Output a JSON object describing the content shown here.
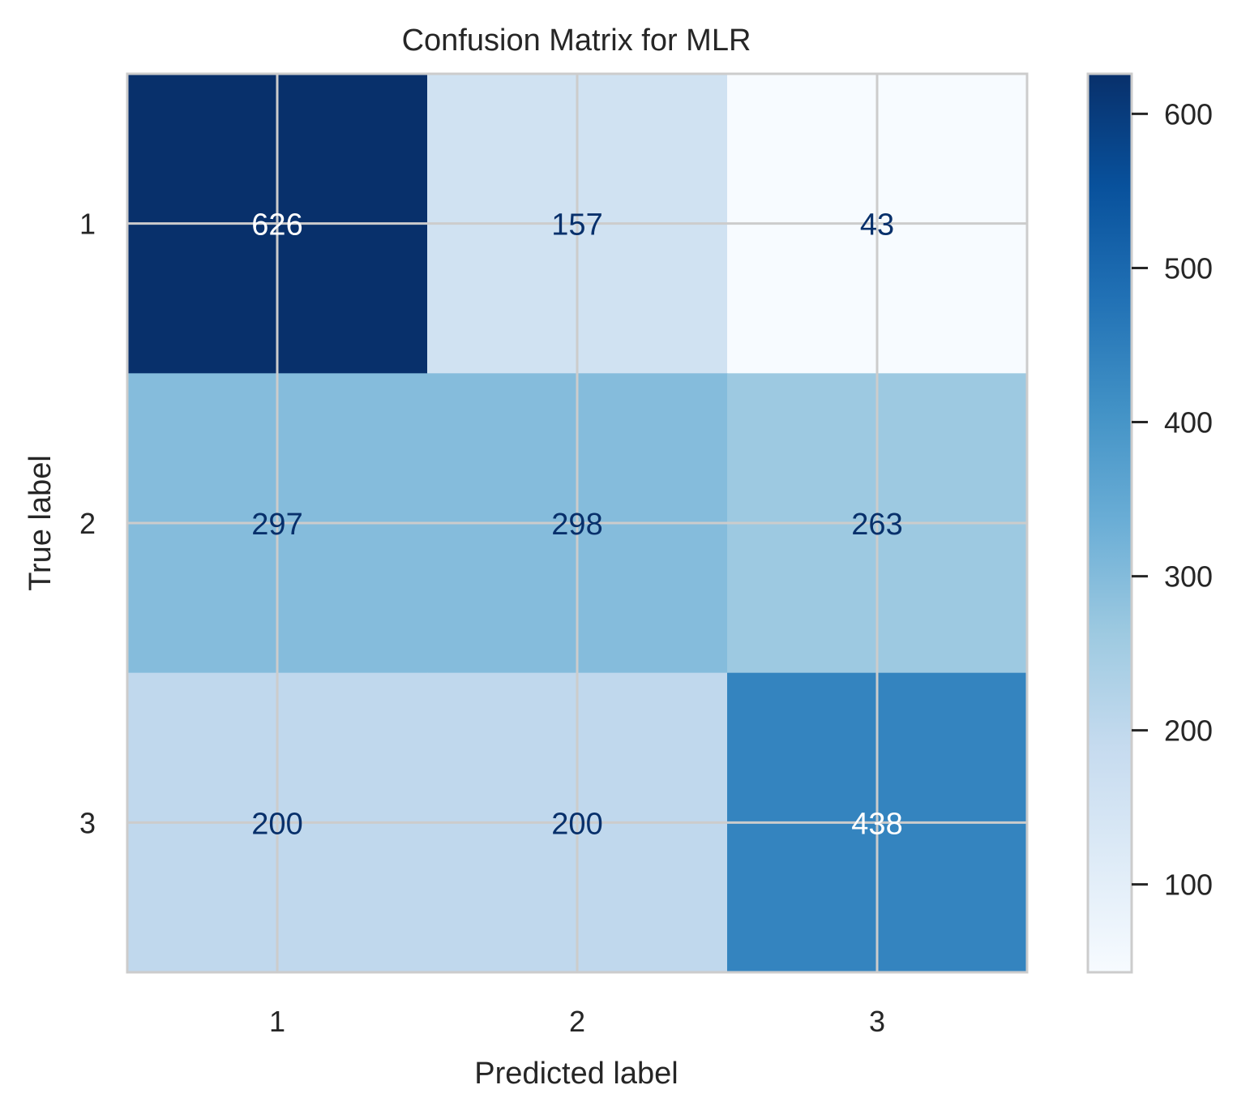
{
  "chart_data": {
    "type": "heatmap",
    "title": "Confusion Matrix for MLR",
    "xlabel": "Predicted label",
    "ylabel": "True label",
    "x_categories": [
      "1",
      "2",
      "3"
    ],
    "y_categories": [
      "1",
      "2",
      "3"
    ],
    "values": [
      [
        626,
        157,
        43
      ],
      [
        297,
        298,
        263
      ],
      [
        200,
        200,
        438
      ]
    ],
    "colormap": "Blues",
    "colorbar": {
      "min": 43,
      "max": 626,
      "ticks": [
        100,
        200,
        300,
        400,
        500,
        600
      ],
      "tick_labels": [
        "100",
        "200",
        "300",
        "400",
        "500",
        "600"
      ]
    },
    "grid": true
  },
  "colors": {
    "grid": "#cccccc",
    "text_dark": "#08306b",
    "text_light": "#ffffff",
    "label": "#262626"
  }
}
